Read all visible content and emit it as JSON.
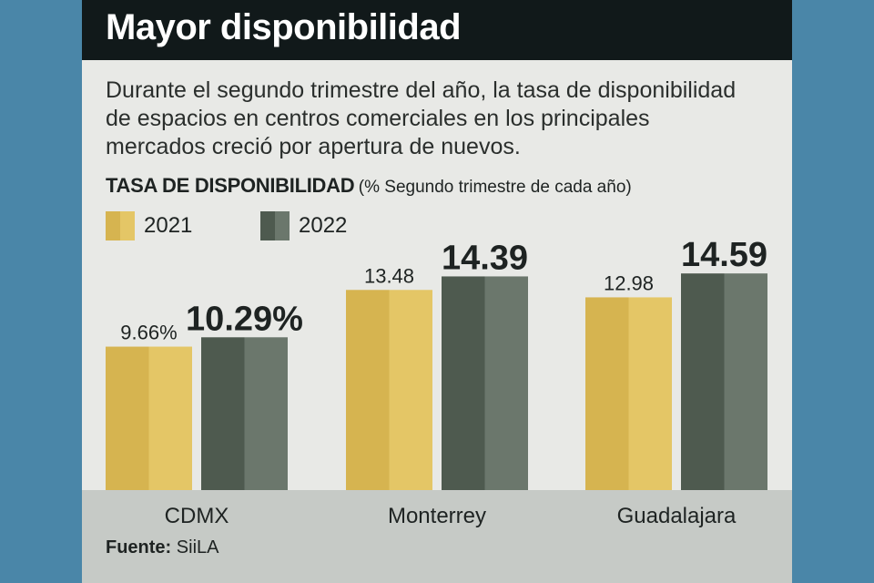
{
  "header": {
    "title": "Mayor disponibilidad",
    "subtitle": "Durante el segundo trimestre del año, la tasa de disponibilidad de espacios en centros comerciales en los principales mercados creció por apertura de nuevos."
  },
  "chart_data": {
    "type": "bar",
    "title_bold": "TASA DE DISPONIBILIDAD",
    "title_note": "(% Segundo trimestre de cada año)",
    "categories": [
      "CDMX",
      "Monterrey",
      "Guadalajara"
    ],
    "series": [
      {
        "name": "2021",
        "values": [
          9.66,
          13.48,
          12.98
        ],
        "labels": [
          "9.66%",
          "13.48",
          "12.98"
        ],
        "color_light": "#e4c666",
        "color_dark": "#d6b450"
      },
      {
        "name": "2022",
        "values": [
          10.29,
          14.39,
          14.59
        ],
        "labels": [
          "10.29%",
          "14.39",
          "14.59"
        ],
        "color_light": "#6b776c",
        "color_dark": "#4e5a4f"
      }
    ],
    "legend_position": "top-left",
    "grid": false,
    "ylim": [
      0,
      16
    ]
  },
  "footer": {
    "source_label": "Fuente:",
    "source_value": "SiiLA"
  },
  "colors": {
    "background": "#4a86a8",
    "card": "#e8e9e6",
    "title_bar": "#11191a",
    "bottom_band": "#c6cac6"
  }
}
